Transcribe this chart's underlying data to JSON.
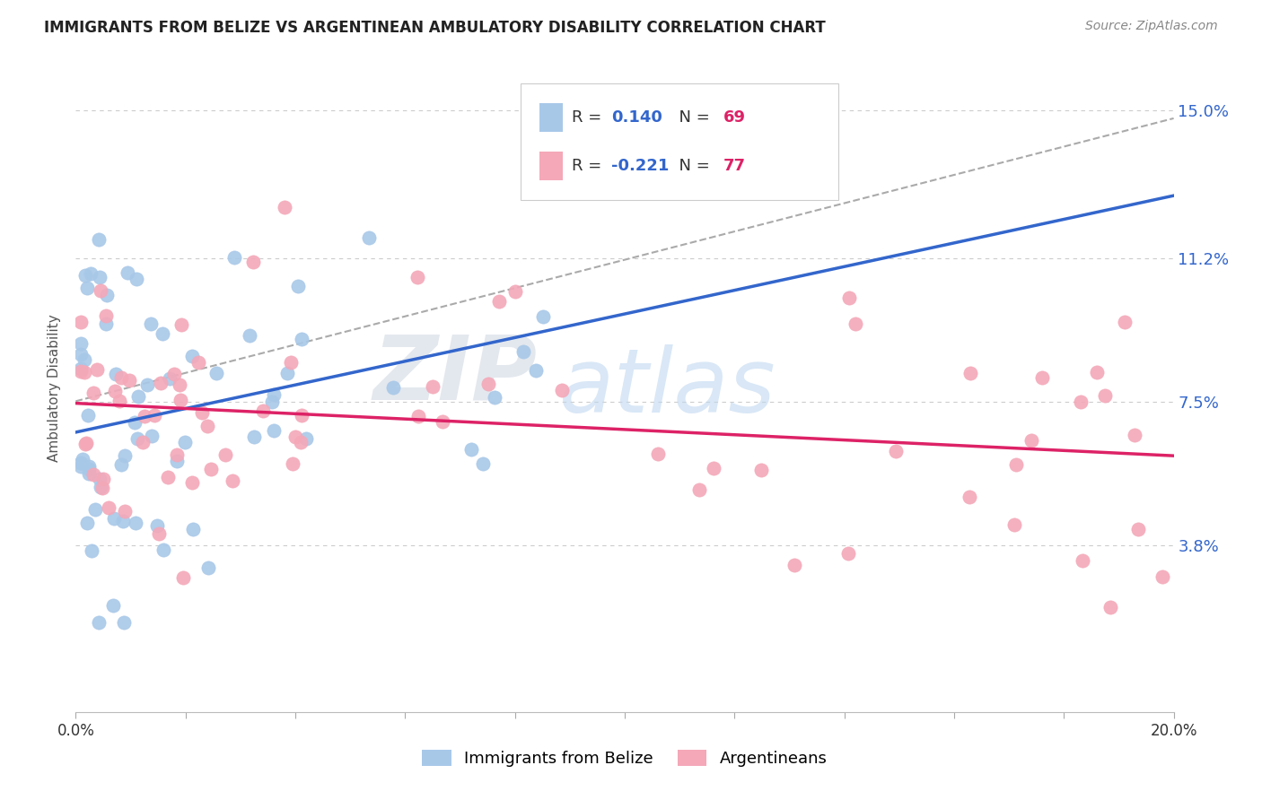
{
  "title": "IMMIGRANTS FROM BELIZE VS ARGENTINEAN AMBULATORY DISABILITY CORRELATION CHART",
  "source": "Source: ZipAtlas.com",
  "ylabel": "Ambulatory Disability",
  "yticks": [
    "3.8%",
    "7.5%",
    "11.2%",
    "15.0%"
  ],
  "ytick_vals": [
    0.038,
    0.075,
    0.112,
    0.15
  ],
  "xlim": [
    0.0,
    0.2
  ],
  "ylim": [
    -0.005,
    0.162
  ],
  "belize_color": "#a8c8e8",
  "argentina_color": "#f4a8b8",
  "trendline_belize_color": "#3366cc",
  "trendline_argentina_color": "#dd2266",
  "trendline_dashed_color": "#aaaaaa",
  "legend_label_belize": "Immigrants from Belize",
  "legend_label_argentina": "Argentineans",
  "watermark_zip": "ZIP",
  "watermark_atlas": "atlas",
  "belize_R": "0.140",
  "belize_N": "69",
  "argentina_R": "-0.221",
  "argentina_N": "77",
  "r_color": "#3366cc",
  "n_color": "#dd2266"
}
